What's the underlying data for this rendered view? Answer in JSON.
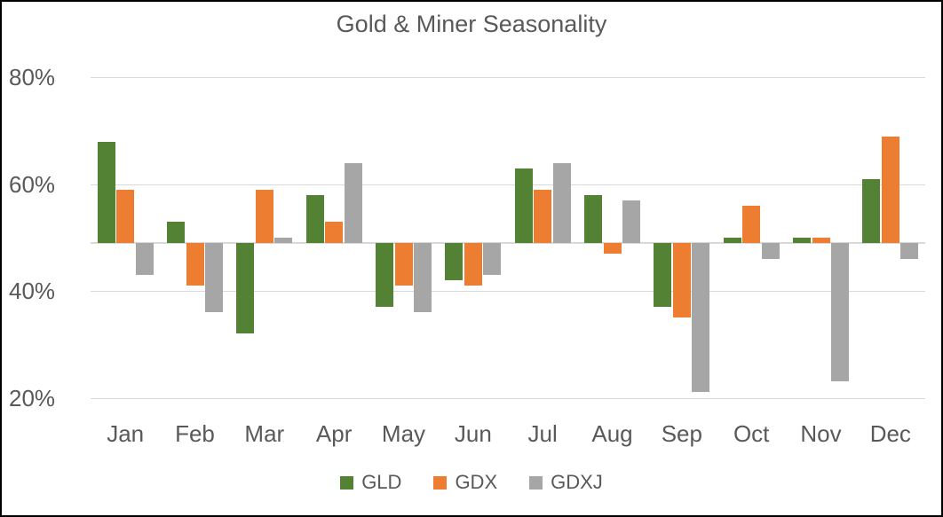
{
  "chart_data": {
    "type": "bar",
    "title": "Gold & Miner Seasonality",
    "categories": [
      "Jan",
      "Feb",
      "Mar",
      "Apr",
      "May",
      "Jun",
      "Jul",
      "Aug",
      "Sep",
      "Oct",
      "Nov",
      "Dec"
    ],
    "series": [
      {
        "name": "GLD",
        "color": "#548235",
        "values": [
          68,
          53,
          32,
          58,
          37,
          42,
          63,
          58,
          37,
          50,
          50,
          61
        ]
      },
      {
        "name": "GDX",
        "color": "#ED7D31",
        "values": [
          59,
          41,
          59,
          53,
          41,
          41,
          59,
          47,
          35,
          56,
          50,
          69
        ]
      },
      {
        "name": "GDXJ",
        "color": "#A6A6A6",
        "values": [
          43,
          36,
          50,
          64,
          36,
          43,
          64,
          57,
          21,
          46,
          23,
          46
        ]
      }
    ],
    "bar_baseline": 49,
    "unit": "%",
    "y_axis": {
      "tick_labels": [
        "80%",
        "60%",
        "40%",
        "20%"
      ],
      "tick_values": [
        80,
        60,
        40,
        20
      ]
    },
    "ylim": [
      13,
      86
    ],
    "grid": true,
    "legend_position": "bottom",
    "colors": {
      "text": "#595959",
      "gridline": "#D9D9D9",
      "frame_border": "#000000",
      "background": "#FFFFFF"
    }
  }
}
